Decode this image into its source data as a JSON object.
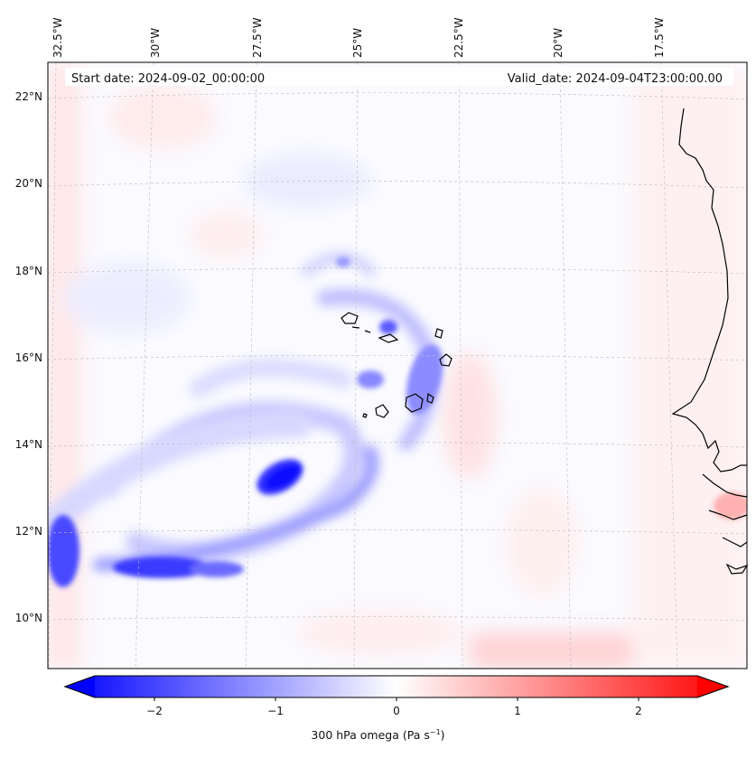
{
  "map": {
    "start_date": "Start date: 2024-09-02_00:00:00",
    "valid_date": "Valid_date: 2024-09-04T23:00:00.00",
    "lon_labels": [
      "32.5°W",
      "30°W",
      "27.5°W",
      "25°W",
      "22.5°W",
      "20°W",
      "17.5°W"
    ],
    "lat_labels": [
      "22°N",
      "20°N",
      "18°N",
      "16°N",
      "14°N",
      "12°N",
      "10°N"
    ],
    "gridlines": true,
    "field": "300 hPa omega",
    "colormap": "bwr",
    "colors": {
      "negative": "#0000ff",
      "zero": "#ffffff",
      "positive": "#ff0000",
      "coast": "#000000",
      "grid": "#bbbbbb"
    }
  },
  "colorbar": {
    "ticks": [
      "−2",
      "−1",
      "0",
      "1",
      "2"
    ],
    "label_text": "300 hPa omega (Pa s",
    "label_exp": "−1",
    "label_end": ")",
    "range": [
      -2.6,
      2.6
    ],
    "extend": "both"
  }
}
